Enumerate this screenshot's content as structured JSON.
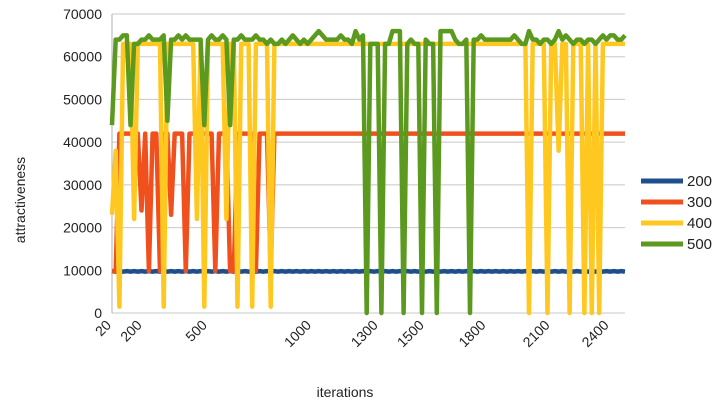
{
  "chart_data": {
    "type": "line",
    "title": "",
    "xlabel": "iterations",
    "ylabel": "attractiveness",
    "ylim": [
      0,
      70000
    ],
    "yticks": [
      0,
      10000,
      20000,
      30000,
      40000,
      50000,
      60000,
      70000
    ],
    "xtick_labels": [
      "20",
      "200",
      "500",
      "1000",
      "1300",
      "1500",
      "1800",
      "2100",
      "2400"
    ],
    "grid": "horizontal",
    "legend_position": "right",
    "n_points": 140,
    "series": [
      {
        "name": "200",
        "color": "#1f4e8c",
        "values": [
          9800,
          9700,
          9800,
          9700,
          9800,
          9700,
          9800,
          9700,
          9800,
          9700,
          9800,
          9700,
          9800,
          9700,
          9800,
          9700,
          9800,
          9700,
          9800,
          9700,
          9800,
          9700,
          9800,
          9700,
          9800,
          9700,
          9800,
          9700,
          9800,
          9700,
          9800,
          9700,
          9800,
          9700,
          9800,
          9700,
          9800,
          9700,
          9800,
          9700,
          9800,
          9700,
          9800,
          9700,
          9800,
          9700,
          9800,
          9700,
          9800,
          9700,
          9800,
          9700,
          9800,
          9700,
          9800,
          9700,
          9800,
          9700,
          9800,
          9700,
          9800,
          9700,
          9800,
          9700,
          9800,
          9700,
          9800,
          9700,
          9800,
          9700,
          9800,
          9700,
          9800,
          9700,
          9800,
          9700,
          9800,
          9700,
          9800,
          9700,
          9800,
          9700,
          9800,
          9700,
          9800,
          9700,
          9800,
          9700,
          9800,
          9700,
          9800,
          9700,
          9800,
          9700,
          9800,
          9700,
          9800,
          9700,
          9800,
          9700,
          9800,
          9700,
          9800,
          9700,
          9800,
          9700,
          9800,
          9700,
          9800,
          9700,
          9800,
          9700,
          9800,
          9700,
          9800,
          9700,
          9800,
          9700,
          9800,
          9700,
          9800,
          9700,
          9800,
          9700,
          9800,
          9700,
          9800,
          9700,
          9800,
          9700,
          9800,
          9700,
          9800,
          9700,
          9800,
          9700,
          9800,
          9700,
          9800,
          9700
        ]
      },
      {
        "name": "300",
        "color": "#f0501e",
        "values": [
          9800,
          9800,
          42000,
          42000,
          42000,
          42000,
          42000,
          42000,
          24000,
          42000,
          9800,
          42000,
          42000,
          9800,
          42000,
          42000,
          23000,
          42000,
          42000,
          42000,
          9800,
          42000,
          42000,
          42000,
          42000,
          42000,
          42000,
          42000,
          9800,
          42000,
          42000,
          42000,
          9800,
          9800,
          42000,
          42000,
          42000,
          42000,
          42000,
          9800,
          42000,
          42000,
          42000,
          9800,
          42000,
          42000,
          42000,
          42000,
          42000,
          42000,
          42000,
          42000,
          42000,
          42000,
          42000,
          42000,
          42000,
          42000,
          42000,
          42000,
          42000,
          42000,
          42000,
          42000,
          42000,
          42000,
          42000,
          42000,
          42000,
          42000,
          42000,
          42000,
          42000,
          42000,
          42000,
          42000,
          42000,
          42000,
          42000,
          42000,
          42000,
          42000,
          42000,
          42000,
          42000,
          42000,
          42000,
          42000,
          42000,
          42000,
          42000,
          42000,
          42000,
          42000,
          42000,
          42000,
          42000,
          42000,
          42000,
          42000,
          42000,
          42000,
          42000,
          42000,
          42000,
          42000,
          42000,
          42000,
          42000,
          42000,
          42000,
          42000,
          42000,
          42000,
          42000,
          42000,
          42000,
          42000,
          42000,
          42000,
          42000,
          42000,
          42000,
          42000,
          42000,
          42000,
          42000,
          42000,
          42000,
          42000,
          42000,
          42000,
          42000,
          42000,
          42000,
          42000,
          42000,
          42000,
          42000,
          42000
        ]
      },
      {
        "name": "400",
        "color": "#ffc820",
        "values": [
          23000,
          38000,
          1500,
          63000,
          63000,
          63000,
          22000,
          63000,
          63000,
          63000,
          63000,
          63000,
          63000,
          63000,
          1500,
          63000,
          63000,
          63000,
          63000,
          63000,
          63000,
          63000,
          63000,
          22000,
          63000,
          1500,
          63000,
          63000,
          63000,
          63000,
          63000,
          22000,
          63000,
          63000,
          1500,
          63000,
          63000,
          63000,
          1500,
          63000,
          63000,
          63000,
          63000,
          1500,
          63000,
          63000,
          63000,
          63000,
          63000,
          63000,
          63000,
          63000,
          63000,
          63000,
          63000,
          63000,
          63000,
          63000,
          63000,
          63000,
          63000,
          63000,
          63000,
          63000,
          63000,
          63000,
          63000,
          63000,
          63000,
          63000,
          63000,
          63000,
          63000,
          63000,
          63000,
          63000,
          63000,
          63000,
          63000,
          63000,
          63000,
          63000,
          63000,
          63000,
          63000,
          63000,
          63000,
          63000,
          63000,
          63000,
          63000,
          63000,
          63000,
          63000,
          63000,
          63000,
          63000,
          63000,
          63000,
          63000,
          63000,
          63000,
          63000,
          63000,
          63000,
          63000,
          63000,
          63000,
          63000,
          63000,
          63000,
          63000,
          63000,
          0,
          63000,
          63000,
          63000,
          63000,
          0,
          63000,
          63000,
          38000,
          63000,
          63000,
          0,
          63000,
          63000,
          63000,
          0,
          63000,
          0,
          63000,
          0,
          63000,
          63000,
          63000,
          63000,
          63000,
          63000,
          63000
        ]
      },
      {
        "name": "500",
        "color": "#5b9a1e",
        "values": [
          44000,
          64000,
          64000,
          65000,
          65000,
          44000,
          63000,
          63000,
          64000,
          64000,
          65000,
          64000,
          64000,
          64000,
          65000,
          45000,
          64000,
          64000,
          65000,
          64000,
          65000,
          64000,
          64000,
          64000,
          64000,
          44000,
          64000,
          65000,
          64000,
          64000,
          65000,
          64000,
          44000,
          64000,
          64000,
          65000,
          64000,
          64000,
          64000,
          65000,
          64000,
          64000,
          63000,
          64000,
          63000,
          63000,
          64000,
          63000,
          64000,
          65000,
          64000,
          63000,
          64000,
          63000,
          64000,
          65000,
          66000,
          65000,
          64000,
          64000,
          64000,
          64000,
          65000,
          64000,
          64000,
          63000,
          66000,
          64000,
          65000,
          0,
          63000,
          63000,
          63000,
          0,
          63000,
          63000,
          66000,
          66000,
          66000,
          0,
          63000,
          64000,
          63000,
          63000,
          0,
          64000,
          63000,
          63000,
          0,
          66000,
          66000,
          66000,
          66000,
          64000,
          63000,
          63000,
          64000,
          0,
          64000,
          64000,
          65000,
          64000,
          64000,
          64000,
          64000,
          64000,
          64000,
          64000,
          64000,
          65000,
          64000,
          63000,
          63000,
          66000,
          64000,
          64000,
          63000,
          64000,
          64000,
          63000,
          64000,
          66000,
          64000,
          65000,
          64000,
          63000,
          64000,
          64000,
          63000,
          64000,
          64000,
          63000,
          64000,
          65000,
          64000,
          65000,
          65000,
          64000,
          64000,
          65000
        ]
      }
    ]
  }
}
